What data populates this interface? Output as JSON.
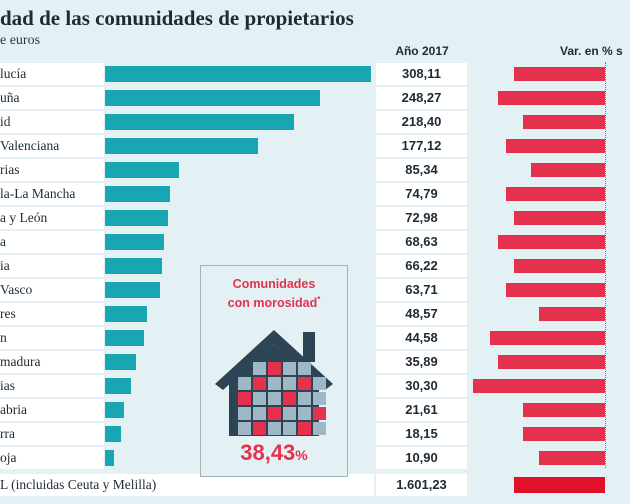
{
  "title": "dad de las comunidades de propietarios",
  "subtitle": "e euros",
  "col_year": "Año 2017",
  "col_var": "Var. en % s",
  "inset": {
    "title_line1": "Comunidades",
    "title_line2": "con morosidad",
    "asterisk": "*",
    "pct_value": "38,43",
    "pct_unit": "%"
  },
  "total": {
    "label": "L (incluidas Ceuta y Melilla)",
    "value": "1.601,23"
  },
  "colors": {
    "bar": "#1aa5b3",
    "var": "#e4324e",
    "total_var": "#e0112b",
    "background": "#e4f1f4"
  },
  "chart_data": {
    "type": "bar",
    "orientation": "horizontal",
    "categories": [
      "lucía",
      "uña",
      "id",
      "Valenciana",
      "rias",
      "la-La Mancha",
      "a y León",
      "a",
      "ia",
      "Vasco",
      "res",
      "n",
      "madura",
      "ias",
      "abria",
      "rra",
      "oja"
    ],
    "series": [
      {
        "name": "Año 2017",
        "values": [
          308.11,
          248.27,
          218.4,
          177.12,
          85.34,
          74.79,
          72.98,
          68.63,
          66.22,
          63.71,
          48.57,
          44.58,
          35.89,
          30.3,
          21.61,
          18.15,
          10.9
        ]
      },
      {
        "name": "Var. en % s",
        "values": [
          -11,
          -13,
          -10,
          -12,
          -9,
          -12,
          -11,
          -13,
          -11,
          -12,
          -8,
          -14,
          -13,
          -16,
          -10,
          -10,
          -8
        ]
      }
    ],
    "value_labels": [
      "308,11",
      "248,27",
      "218,40",
      "177,12",
      "85,34",
      "74,79",
      "72,98",
      "68,63",
      "66,22",
      "63,71",
      "48,57",
      "44,58",
      "35,89",
      "30,30",
      "21,61",
      "18,15",
      "10,90"
    ],
    "total": {
      "value": 1601.23,
      "var": -11
    },
    "xlim": [
      0,
      310
    ],
    "var_xlim": [
      -16,
      0
    ]
  }
}
